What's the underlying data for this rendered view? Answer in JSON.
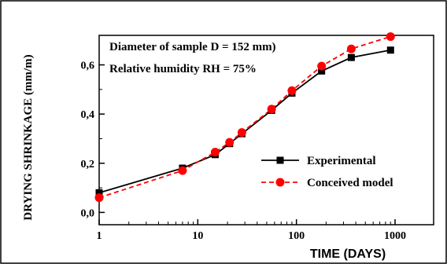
{
  "chart_data": {
    "type": "line",
    "xlabel": "TIME (DAYS)",
    "ylabel": "DRYING SHRINKAGE (mm/m)",
    "x_scale": "log",
    "xlim": [
      1,
      1000
    ],
    "ylim": [
      -0.05,
      0.72
    ],
    "x_ticks": [
      1,
      10,
      100,
      1000
    ],
    "x_tick_labels": [
      "1",
      "10",
      "100",
      "1000"
    ],
    "y_ticks": [
      0.0,
      0.2,
      0.4,
      0.6
    ],
    "y_tick_labels": [
      "0,0",
      "0,2",
      "0,4",
      "0,6"
    ],
    "annotations": [
      "Diameter of sample D = 152 mm)",
      "Relative humidity RH = 75%"
    ],
    "legend_position": "lower-right",
    "series": [
      {
        "name": "Experimental",
        "color": "#000000",
        "line": "solid",
        "marker": "square",
        "x": [
          1,
          7,
          15,
          21,
          28,
          56,
          90,
          180,
          360,
          900
        ],
        "y": [
          0.08,
          0.18,
          0.235,
          0.28,
          0.32,
          0.415,
          0.485,
          0.575,
          0.63,
          0.66
        ]
      },
      {
        "name": "Conceived model",
        "color": "#ff0000",
        "line": "dashed",
        "marker": "circle",
        "x": [
          1,
          7,
          15,
          21,
          28,
          56,
          90,
          180,
          360,
          900
        ],
        "y": [
          0.06,
          0.17,
          0.245,
          0.285,
          0.325,
          0.42,
          0.495,
          0.595,
          0.665,
          0.715
        ]
      }
    ]
  }
}
